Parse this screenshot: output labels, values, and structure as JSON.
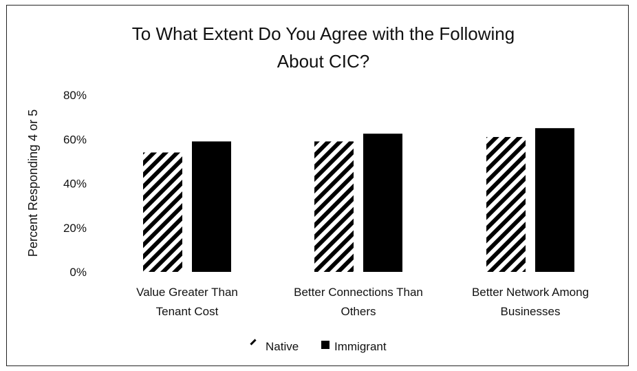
{
  "chart_data": {
    "type": "bar",
    "title_lines": [
      "To What Extent Do You Agree with the Following",
      "About CIC?"
    ],
    "xlabel": "",
    "ylabel": "Percent Responding 4 or 5",
    "ylim": [
      0,
      0.8
    ],
    "yticks": [
      0,
      0.2,
      0.4,
      0.6,
      0.8
    ],
    "ytick_labels": [
      "0%",
      "20%",
      "40%",
      "60%",
      "80%"
    ],
    "categories": [
      [
        "Value Greater Than",
        "Tenant Cost"
      ],
      [
        "Better Connections Than",
        "Others"
      ],
      [
        "Better Network Among",
        "Businesses"
      ]
    ],
    "series": [
      {
        "name": "Native",
        "values": [
          0.54,
          0.59,
          0.61
        ],
        "fill": "hatch",
        "color": "#000000"
      },
      {
        "name": "Immigrant",
        "values": [
          0.59,
          0.625,
          0.65
        ],
        "fill": "solid",
        "color": "#000000"
      }
    ],
    "grid": false,
    "legend": "bottom"
  }
}
